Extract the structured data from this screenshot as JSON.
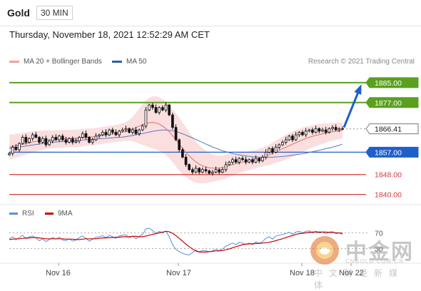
{
  "header": {
    "asset": "Gold",
    "timeframe": "30 MIN"
  },
  "timestamp": "Thursday, November 18, 2021 12:52:29 AM CET",
  "credit": "Research © 2021 Trading Central",
  "legend": [
    {
      "label": "MA 20 + Bollinger Bands",
      "color": "#f4a0a0"
    },
    {
      "label": "MA 50",
      "color": "#2c5f9e"
    }
  ],
  "indicator_legend": [
    {
      "label": "RSI",
      "color": "#5b8fd6"
    },
    {
      "label": "9MA",
      "color": "#cc0000"
    }
  ],
  "watermark": {
    "name": "中金网",
    "url": "CNGOLD.COM.CN",
    "sub": "中文财经新媒体"
  },
  "chart_data": {
    "type": "candlestick",
    "y_range": [
      1835,
      1891
    ],
    "x_labels": [
      "Nov 16",
      "Nov 17",
      "Nov 18",
      "Nov 22"
    ],
    "price_levels": [
      {
        "label": "1885.00",
        "value": 1885.0,
        "kind": "resistance",
        "color": "#5aa01e"
      },
      {
        "label": "1877.00",
        "value": 1877.0,
        "kind": "resistance",
        "color": "#5aa01e"
      },
      {
        "label": "1866.41",
        "value": 1866.41,
        "kind": "last",
        "color": "#333333"
      },
      {
        "label": "1857.00",
        "value": 1857.0,
        "kind": "pivot",
        "color": "#1f5fcc"
      },
      {
        "label": "1848.00",
        "value": 1848.0,
        "kind": "support",
        "color": "#d23a3a"
      },
      {
        "label": "1840.00",
        "value": 1840.0,
        "kind": "support",
        "color": "#d23a3a"
      }
    ],
    "closes": [
      1856.5,
      1859,
      1858,
      1860.5,
      1863,
      1861,
      1862.5,
      1864,
      1863,
      1861,
      1862.5,
      1860,
      1861.5,
      1863,
      1862,
      1863.5,
      1862,
      1861,
      1862.5,
      1861,
      1861.5,
      1863,
      1864.5,
      1863,
      1861,
      1862,
      1863.5,
      1864,
      1865,
      1864,
      1866,
      1865,
      1864,
      1865.5,
      1866,
      1866.5,
      1865,
      1866,
      1864.5,
      1866,
      1867.5,
      1874,
      1876,
      1875,
      1873,
      1875,
      1874,
      1876,
      1872,
      1867,
      1862,
      1858,
      1855,
      1852,
      1850,
      1849,
      1850.5,
      1849,
      1850,
      1849.5,
      1848.5,
      1849,
      1850,
      1849,
      1850,
      1852,
      1853,
      1854,
      1853,
      1854.5,
      1854,
      1853,
      1854,
      1853,
      1854.5,
      1853.5,
      1855,
      1857,
      1858.5,
      1857,
      1859,
      1860,
      1861,
      1862,
      1863.5,
      1862,
      1864,
      1865,
      1864,
      1865.5,
      1866,
      1865,
      1866.5,
      1865.5,
      1866,
      1865,
      1866.5,
      1867,
      1866,
      1866.5,
      1866.41
    ],
    "ma20": [
      1859,
      1859.3,
      1859.6,
      1859.9,
      1860.2,
      1860.5,
      1860.8,
      1861.1,
      1861.4,
      1861.6,
      1861.8,
      1862,
      1862.1,
      1862.2,
      1862.3,
      1862.4,
      1862.4,
      1862.5,
      1862.5,
      1862.6,
      1862.6,
      1862.7,
      1862.8,
      1863,
      1863.1,
      1863.2,
      1863.4,
      1863.6,
      1863.8,
      1864,
      1864.2,
      1864.4,
      1864.6,
      1864.8,
      1865.1,
      1865.4,
      1865.8,
      1866.3,
      1866.9,
      1867.5,
      1868.1,
      1868.6,
      1868.9,
      1869,
      1868.8,
      1868.3,
      1867.5,
      1866.5,
      1865.2,
      1863.7,
      1862,
      1860.3,
      1858.6,
      1857,
      1855.5,
      1854.2,
      1853.1,
      1852.2,
      1851.5,
      1851,
      1850.7,
      1850.6,
      1850.6,
      1850.7,
      1850.9,
      1851.2,
      1851.6,
      1852,
      1852.4,
      1852.7,
      1853,
      1853.3,
      1853.6,
      1853.9,
      1854.2,
      1854.6,
      1855,
      1855.5,
      1856,
      1856.6,
      1857.2,
      1857.8,
      1858.4,
      1859,
      1859.6,
      1860.2,
      1860.8,
      1861.4,
      1862,
      1862.5,
      1863,
      1863.4,
      1863.8,
      1864.1,
      1864.4,
      1864.7,
      1865,
      1865.2,
      1865.4,
      1865.6,
      1865.8
    ],
    "bb_upper": [
      1864,
      1864.2,
      1864.4,
      1864.6,
      1864.8,
      1865,
      1865.2,
      1865.4,
      1865.5,
      1865.6,
      1865.7,
      1865.8,
      1865.8,
      1865.8,
      1865.9,
      1865.9,
      1866,
      1866,
      1866,
      1866.1,
      1866.1,
      1866.2,
      1866.3,
      1866.4,
      1866.5,
      1866.6,
      1866.8,
      1867,
      1867.2,
      1867.4,
      1867.6,
      1867.8,
      1868,
      1868.3,
      1868.7,
      1869.2,
      1870,
      1871.2,
      1872.8,
      1874.6,
      1876.3,
      1877.8,
      1878.9,
      1879.5,
      1879.5,
      1879.1,
      1878.3,
      1877.2,
      1875.9,
      1874.4,
      1872.7,
      1870.9,
      1869,
      1867,
      1865,
      1863.1,
      1861.4,
      1859.9,
      1858.6,
      1857.5,
      1856.7,
      1856.1,
      1855.8,
      1855.7,
      1855.8,
      1856,
      1856.2,
      1856.4,
      1856.6,
      1856.8,
      1857,
      1857.2,
      1857.4,
      1857.6,
      1857.9,
      1858.3,
      1858.8,
      1859.4,
      1860.1,
      1860.9,
      1861.7,
      1862.5,
      1863.3,
      1864,
      1864.7,
      1865.3,
      1865.9,
      1866.4,
      1866.9,
      1867.3,
      1867.6,
      1867.9,
      1868.1,
      1868.3,
      1868.5,
      1868.6,
      1868.7,
      1868.8,
      1868.9,
      1869,
      1869
    ],
    "bb_lower": [
      1854,
      1854.4,
      1854.8,
      1855.2,
      1855.6,
      1856,
      1856.4,
      1856.8,
      1857.3,
      1857.6,
      1857.9,
      1858.2,
      1858.4,
      1858.6,
      1858.7,
      1858.9,
      1858.8,
      1859,
      1859,
      1859.1,
      1859.1,
      1859.2,
      1859.3,
      1859.6,
      1859.7,
      1859.8,
      1860,
      1860.2,
      1860.4,
      1860.6,
      1860.8,
      1861,
      1861.2,
      1861.3,
      1861.5,
      1861.6,
      1861.6,
      1861.4,
      1861,
      1860.4,
      1859.9,
      1859.4,
      1858.9,
      1858.5,
      1858.1,
      1857.5,
      1856.7,
      1855.8,
      1854.5,
      1853,
      1851.3,
      1849.7,
      1848.2,
      1847,
      1846,
      1845.3,
      1844.8,
      1844.5,
      1844.4,
      1844.5,
      1844.7,
      1845.1,
      1845.4,
      1845.7,
      1846,
      1846.4,
      1847,
      1847.6,
      1848.2,
      1848.6,
      1849,
      1849.4,
      1849.8,
      1850.2,
      1850.5,
      1850.9,
      1851.2,
      1851.6,
      1851.9,
      1852.3,
      1852.7,
      1853.1,
      1853.5,
      1854,
      1854.5,
      1855.1,
      1855.7,
      1856.4,
      1857.1,
      1857.7,
      1858.4,
      1858.9,
      1859.5,
      1859.9,
      1860.3,
      1860.8,
      1861.3,
      1861.6,
      1861.9,
      1862.2,
      1862.6
    ],
    "ma50": [
      1858.5,
      1858.7,
      1858.9,
      1859.1,
      1859.3,
      1859.5,
      1859.7,
      1859.9,
      1860.1,
      1860.3,
      1860.5,
      1860.7,
      1860.8,
      1861,
      1861.1,
      1861.2,
      1861.3,
      1861.4,
      1861.5,
      1861.6,
      1861.7,
      1861.8,
      1861.9,
      1862,
      1862.1,
      1862.2,
      1862.3,
      1862.4,
      1862.5,
      1862.6,
      1862.7,
      1862.8,
      1862.9,
      1863,
      1863.1,
      1863.3,
      1863.5,
      1863.7,
      1864,
      1864.2,
      1864.5,
      1864.8,
      1865.1,
      1865.4,
      1865.6,
      1865.8,
      1865.9,
      1865.9,
      1865.8,
      1865.6,
      1865.3,
      1864.9,
      1864.4,
      1863.9,
      1863.3,
      1862.7,
      1862.1,
      1861.5,
      1860.9,
      1860.3,
      1859.7,
      1859.1,
      1858.6,
      1858.1,
      1857.6,
      1857.2,
      1856.8,
      1856.5,
      1856.2,
      1855.9,
      1855.7,
      1855.5,
      1855.3,
      1855.2,
      1855.1,
      1855,
      1855,
      1855,
      1855,
      1855,
      1855.1,
      1855.2,
      1855.3,
      1855.4,
      1855.6,
      1855.8,
      1856,
      1856.2,
      1856.4,
      1856.6,
      1856.9,
      1857.2,
      1857.5,
      1857.8,
      1858.1,
      1858.4,
      1858.7,
      1859,
      1859.4,
      1859.8,
      1860.2
    ],
    "projection": {
      "from": 1866.41,
      "to": 1885.0
    },
    "rsi": {
      "levels": [
        {
          "label": "70",
          "value": 70
        },
        {
          "label": "30",
          "value": 30
        }
      ],
      "rsi": [
        55,
        60,
        52,
        58,
        64,
        55,
        60,
        62,
        57,
        50,
        55,
        48,
        53,
        58,
        54,
        59,
        52,
        50,
        55,
        49,
        52,
        58,
        62,
        56,
        49,
        54,
        59,
        60,
        63,
        58,
        64,
        60,
        56,
        62,
        64,
        65,
        58,
        62,
        55,
        61,
        66,
        80,
        82,
        76,
        68,
        74,
        70,
        75,
        60,
        40,
        28,
        22,
        18,
        15,
        14,
        20,
        26,
        22,
        25,
        24,
        22,
        24,
        28,
        25,
        29,
        36,
        40,
        44,
        40,
        46,
        44,
        40,
        44,
        40,
        47,
        43,
        48,
        56,
        60,
        54,
        62,
        64,
        66,
        68,
        72,
        66,
        72,
        74,
        70,
        74,
        75,
        70,
        74,
        70,
        72,
        68,
        72,
        73,
        68,
        70,
        66
      ],
      "ma9": [
        53,
        54,
        55,
        55,
        56,
        57,
        57,
        58,
        58,
        57,
        56,
        55,
        55,
        55,
        55,
        55,
        55,
        54,
        54,
        54,
        53,
        53,
        54,
        55,
        55,
        55,
        55,
        56,
        57,
        57,
        58,
        58,
        59,
        59,
        60,
        60,
        60,
        61,
        61,
        60,
        60,
        62,
        64,
        66,
        68,
        70,
        72,
        74,
        73,
        69,
        63,
        56,
        49,
        41,
        35,
        29,
        24,
        21,
        21,
        21,
        22,
        23,
        24,
        24,
        25,
        27,
        29,
        32,
        35,
        37,
        40,
        41,
        42,
        42,
        43,
        43,
        44,
        45,
        46,
        48,
        50,
        53,
        55,
        58,
        61,
        63,
        66,
        68,
        69,
        70,
        71,
        72,
        72,
        72,
        72,
        72,
        71,
        71,
        70,
        70,
        69
      ]
    }
  }
}
